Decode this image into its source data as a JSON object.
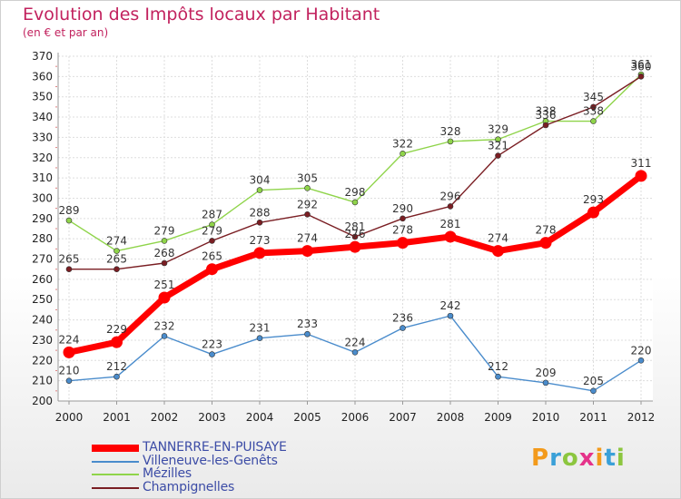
{
  "header": {
    "title": "Evolution des Impôts locaux par Habitant",
    "subtitle": "(en € et par an)"
  },
  "logo": {
    "text": "Proxiti",
    "colors": [
      "#f39a1b",
      "#3aa0d8",
      "#8cc63f",
      "#e5338a"
    ]
  },
  "chart_data": {
    "type": "line",
    "title": "Evolution des Impôts locaux par Habitant",
    "subtitle": "(en € et par an)",
    "xlabel": "",
    "ylabel": "",
    "x": [
      2000,
      2001,
      2002,
      2003,
      2004,
      2005,
      2006,
      2007,
      2008,
      2009,
      2010,
      2011,
      2012
    ],
    "ylim": [
      200,
      370
    ],
    "yticks": [
      200,
      210,
      220,
      230,
      240,
      250,
      260,
      270,
      280,
      290,
      300,
      310,
      320,
      330,
      340,
      350,
      360,
      370
    ],
    "grid": true,
    "legend_position": "bottom-left",
    "series": [
      {
        "name": "Villeneuve-les-Genêts",
        "color": "#4a8ccc",
        "values": [
          210,
          212,
          232,
          223,
          231,
          233,
          224,
          236,
          242,
          212,
          209,
          205,
          220
        ]
      },
      {
        "name": "Mézilles",
        "color": "#8fd44a",
        "values": [
          289,
          274,
          279,
          287,
          304,
          305,
          298,
          322,
          328,
          329,
          338,
          338,
          361
        ]
      },
      {
        "name": "Champignelles",
        "color": "#7a1e23",
        "values": [
          265,
          265,
          268,
          279,
          288,
          292,
          281,
          290,
          296,
          321,
          336,
          345,
          360
        ]
      },
      {
        "name": "TANNERRE-EN-PUISAYE",
        "color": "#ff0000",
        "values": [
          224,
          229,
          251,
          265,
          273,
          274,
          276,
          278,
          281,
          274,
          278,
          293,
          311
        ]
      }
    ],
    "legend_order": [
      "TANNERRE-EN-PUISAYE",
      "Villeneuve-les-Genêts",
      "Mézilles",
      "Champignelles"
    ]
  }
}
